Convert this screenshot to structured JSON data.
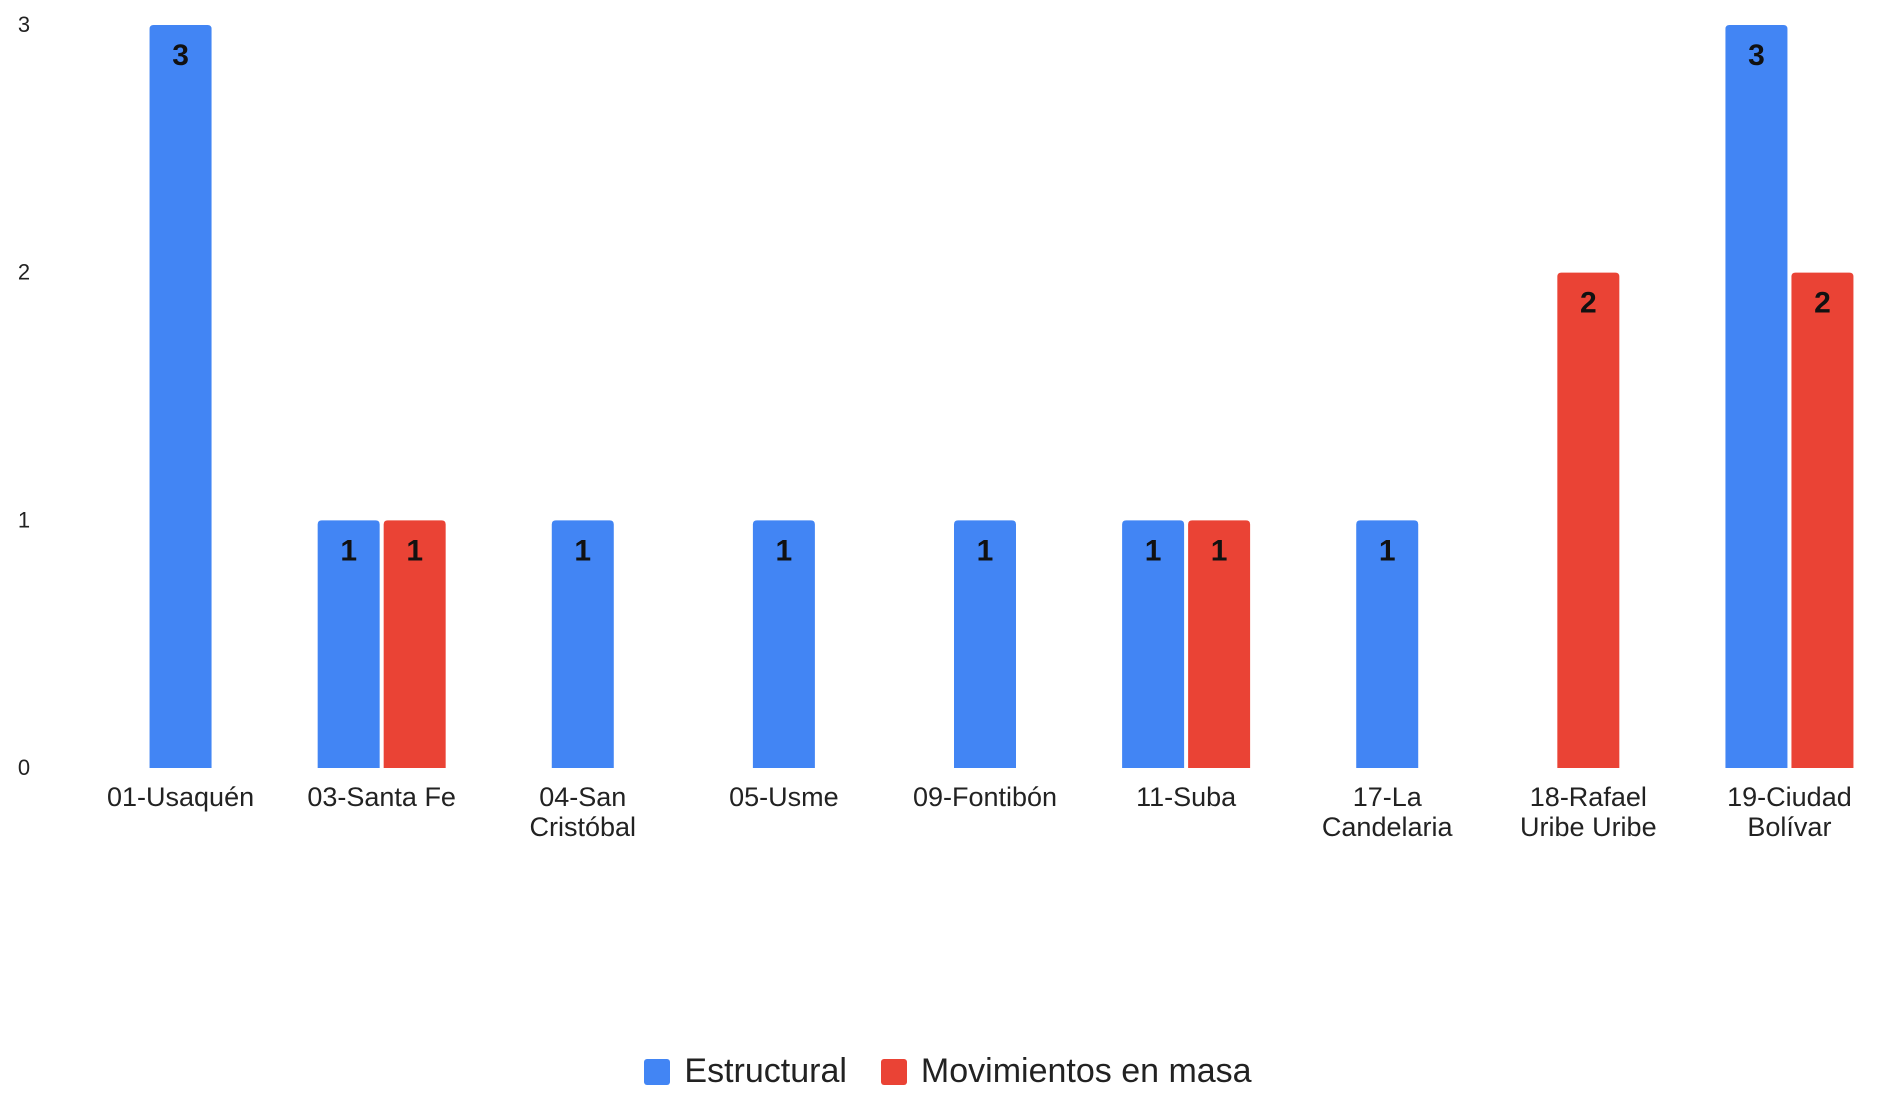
{
  "chart_data": {
    "type": "bar",
    "categories": [
      [
        "01-Usaquén"
      ],
      [
        "03-Santa Fe"
      ],
      [
        "04-San",
        "Cristóbal"
      ],
      [
        "05-Usme"
      ],
      [
        "09-Fontibón"
      ],
      [
        "11-Suba"
      ],
      [
        "17-La",
        "Candelaria"
      ],
      [
        "18-Rafael",
        "Uribe Uribe"
      ],
      [
        "19-Ciudad",
        "Bolívar"
      ]
    ],
    "series": [
      {
        "name": "Estructural",
        "color": "#4285F4",
        "values": [
          3,
          1,
          1,
          1,
          1,
          1,
          1,
          null,
          3
        ]
      },
      {
        "name": "Movimientos en masa",
        "color": "#EA4335",
        "values": [
          null,
          1,
          null,
          null,
          null,
          1,
          null,
          2,
          2
        ]
      }
    ],
    "ylim": [
      0,
      3
    ],
    "yticks": [
      "0",
      "1",
      "2",
      "3"
    ],
    "grid": false,
    "legend_position": "bottom",
    "data_labels": true
  }
}
